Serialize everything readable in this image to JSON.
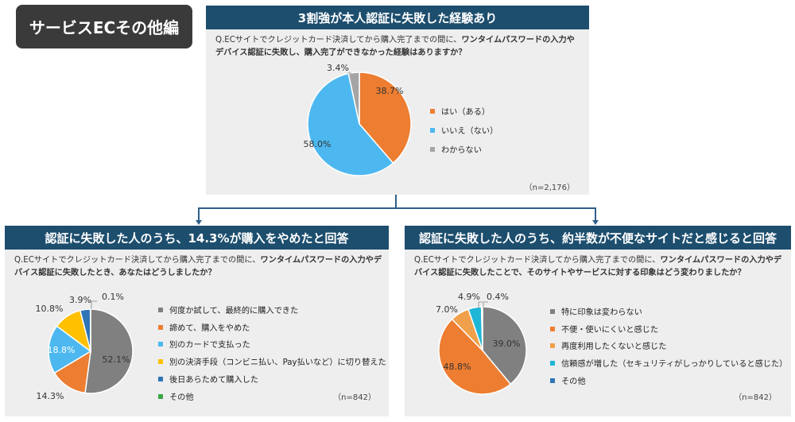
{
  "badge": "サービスECその他編",
  "chart_data": [
    {
      "type": "pie",
      "title": "3割強が本人認証に失敗した経験あり",
      "question_prefix": "Q.ECサイトでクレジットカード決済してから購入完了までの間に、",
      "question_bold": "ワンタイムパスワードの入力やデバイス認証に失敗し、購入完了ができなかった経験はありますか？",
      "n": "（n=2,176）",
      "slices": [
        {
          "label": "はい（ある）",
          "value": 38.7,
          "display": "38.7%",
          "color": "#ed7d31"
        },
        {
          "label": "いいえ（ない）",
          "value": 58.0,
          "display": "58.0%",
          "color": "#4db8f0"
        },
        {
          "label": "わからない",
          "value": 3.4,
          "display": "3.4%",
          "color": "#a5a5a5"
        }
      ]
    },
    {
      "type": "pie",
      "title": "認証に失敗した人のうち、14.3%が購入をやめたと回答",
      "question_prefix": "Q.ECサイトでクレジットカード決済してから購入完了までの間に、",
      "question_bold": "ワンタイムパスワードの入力やデバイス認証に失敗したとき、あなたはどうしましたか？",
      "n": "（n=842）",
      "slices": [
        {
          "label": "何度か試して、最終的に購入できた",
          "value": 52.1,
          "display": "52.1%",
          "color": "#808080"
        },
        {
          "label": "諦めて、購入をやめた",
          "value": 14.3,
          "display": "14.3%",
          "color": "#ed7d31"
        },
        {
          "label": "別のカードで支払った",
          "value": 18.8,
          "display": "18.8%",
          "color": "#4db8f0"
        },
        {
          "label": "別の決済手段（コンビニ払い、Pay払いなど）に切り替えた",
          "value": 10.8,
          "display": "10.8%",
          "color": "#ffc000"
        },
        {
          "label": "後日あらためて購入した",
          "value": 3.9,
          "display": "3.9%",
          "color": "#2e75b6"
        },
        {
          "label": "その他",
          "value": 0.1,
          "display": "0.1%",
          "color": "#3aa845"
        }
      ]
    },
    {
      "type": "pie",
      "title": "認証に失敗した人のうち、約半数が不便なサイトだと感じると回答",
      "question_prefix": "Q.ECサイトでクレジットカード決済してから購入完了までの間に、",
      "question_bold": "ワンタイムパスワードの入力やデバイス認証に失敗したことで、そのサイトやサービスに対する印象はどう変わりましたか？",
      "n": "（n=842）",
      "slices": [
        {
          "label": "特に印象は変わらない",
          "value": 39.0,
          "display": "39.0%",
          "color": "#808080"
        },
        {
          "label": "不便・使いにくいと感じた",
          "value": 48.8,
          "display": "48.8%",
          "color": "#ed7d31"
        },
        {
          "label": "再度利用したくないと感じた",
          "value": 7.0,
          "display": "7.0%",
          "color": "#f0a04a"
        },
        {
          "label": "信頼感が増した（セキュリティがしっかりしていると感じた）",
          "value": 4.9,
          "display": "4.9%",
          "color": "#1fb5d6"
        },
        {
          "label": "その他",
          "value": 0.4,
          "display": "0.4%",
          "color": "#2e75b6"
        }
      ]
    }
  ]
}
